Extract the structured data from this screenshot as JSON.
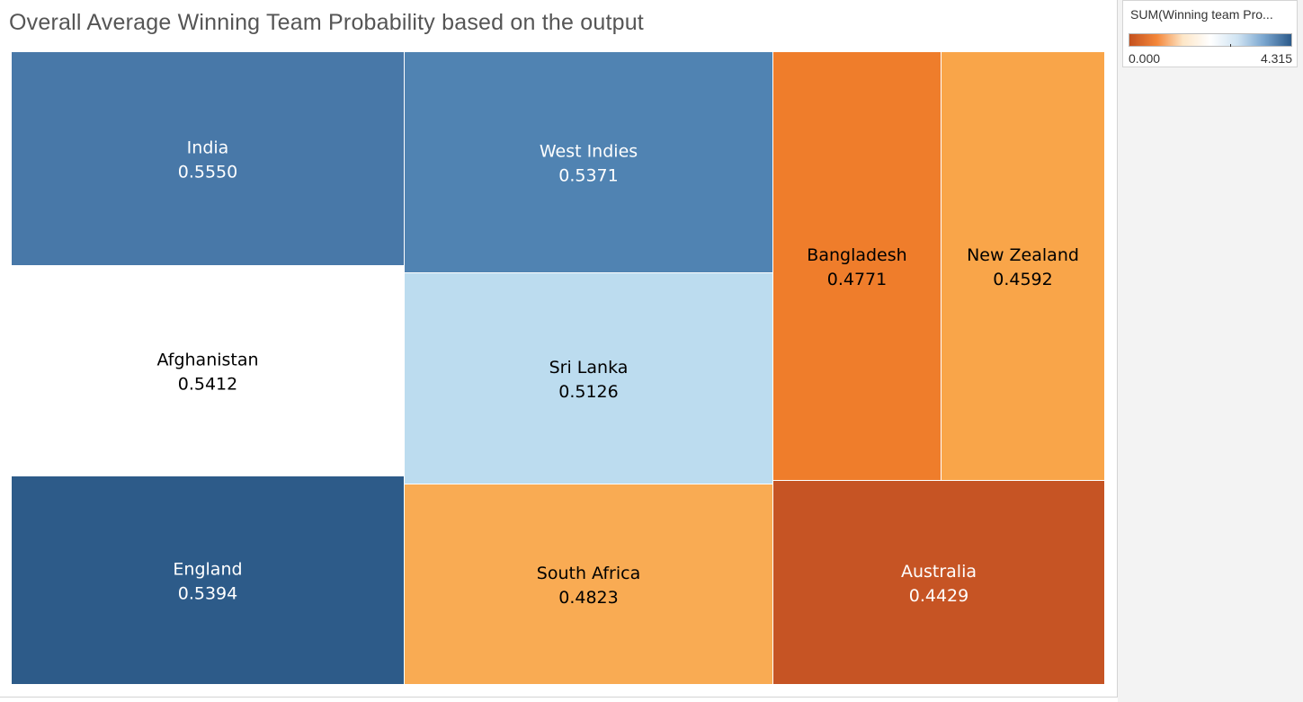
{
  "chart_data": {
    "type": "treemap",
    "title": "Overall Average Winning Team Probability based on the output",
    "legend": {
      "title": "SUM(Winning team Pro...",
      "min_label": "0.000",
      "max_label": "4.315",
      "min": 0.0,
      "max": 4.315,
      "tick_value": 2.69,
      "palette": [
        "#c4511e",
        "#f4873a",
        "#fde6c7",
        "#ffffff",
        "#cfe3f2",
        "#7aa6cf",
        "#2c5a8a"
      ],
      "placement": "top-right"
    },
    "series_name": "Winning team Probability",
    "items": [
      {
        "label": "India",
        "value_label": "0.5550",
        "value": 0.555,
        "color": "#4878a8",
        "text_color": "#ffffff"
      },
      {
        "label": "Afghanistan",
        "value_label": "0.5412",
        "value": 0.5412,
        "color": "#ffffff",
        "text_color": "#000000"
      },
      {
        "label": "England",
        "value_label": "0.5394",
        "value": 0.5394,
        "color": "#2d5b89",
        "text_color": "#ffffff"
      },
      {
        "label": "West Indies",
        "value_label": "0.5371",
        "value": 0.5371,
        "color": "#5083b2",
        "text_color": "#ffffff"
      },
      {
        "label": "Sri Lanka",
        "value_label": "0.5126",
        "value": 0.5126,
        "color": "#bcdcef",
        "text_color": "#000000"
      },
      {
        "label": "South Africa",
        "value_label": "0.4823",
        "value": 0.4823,
        "color": "#f9ab53",
        "text_color": "#000000"
      },
      {
        "label": "Bangladesh",
        "value_label": "0.4771",
        "value": 0.4771,
        "color": "#ef7d2b",
        "text_color": "#000000"
      },
      {
        "label": "New Zealand",
        "value_label": "0.4592",
        "value": 0.4592,
        "color": "#f9a549",
        "text_color": "#000000"
      },
      {
        "label": "Australia",
        "value_label": "0.4429",
        "value": 0.4429,
        "color": "#c65424",
        "text_color": "#ffffff"
      }
    ]
  }
}
